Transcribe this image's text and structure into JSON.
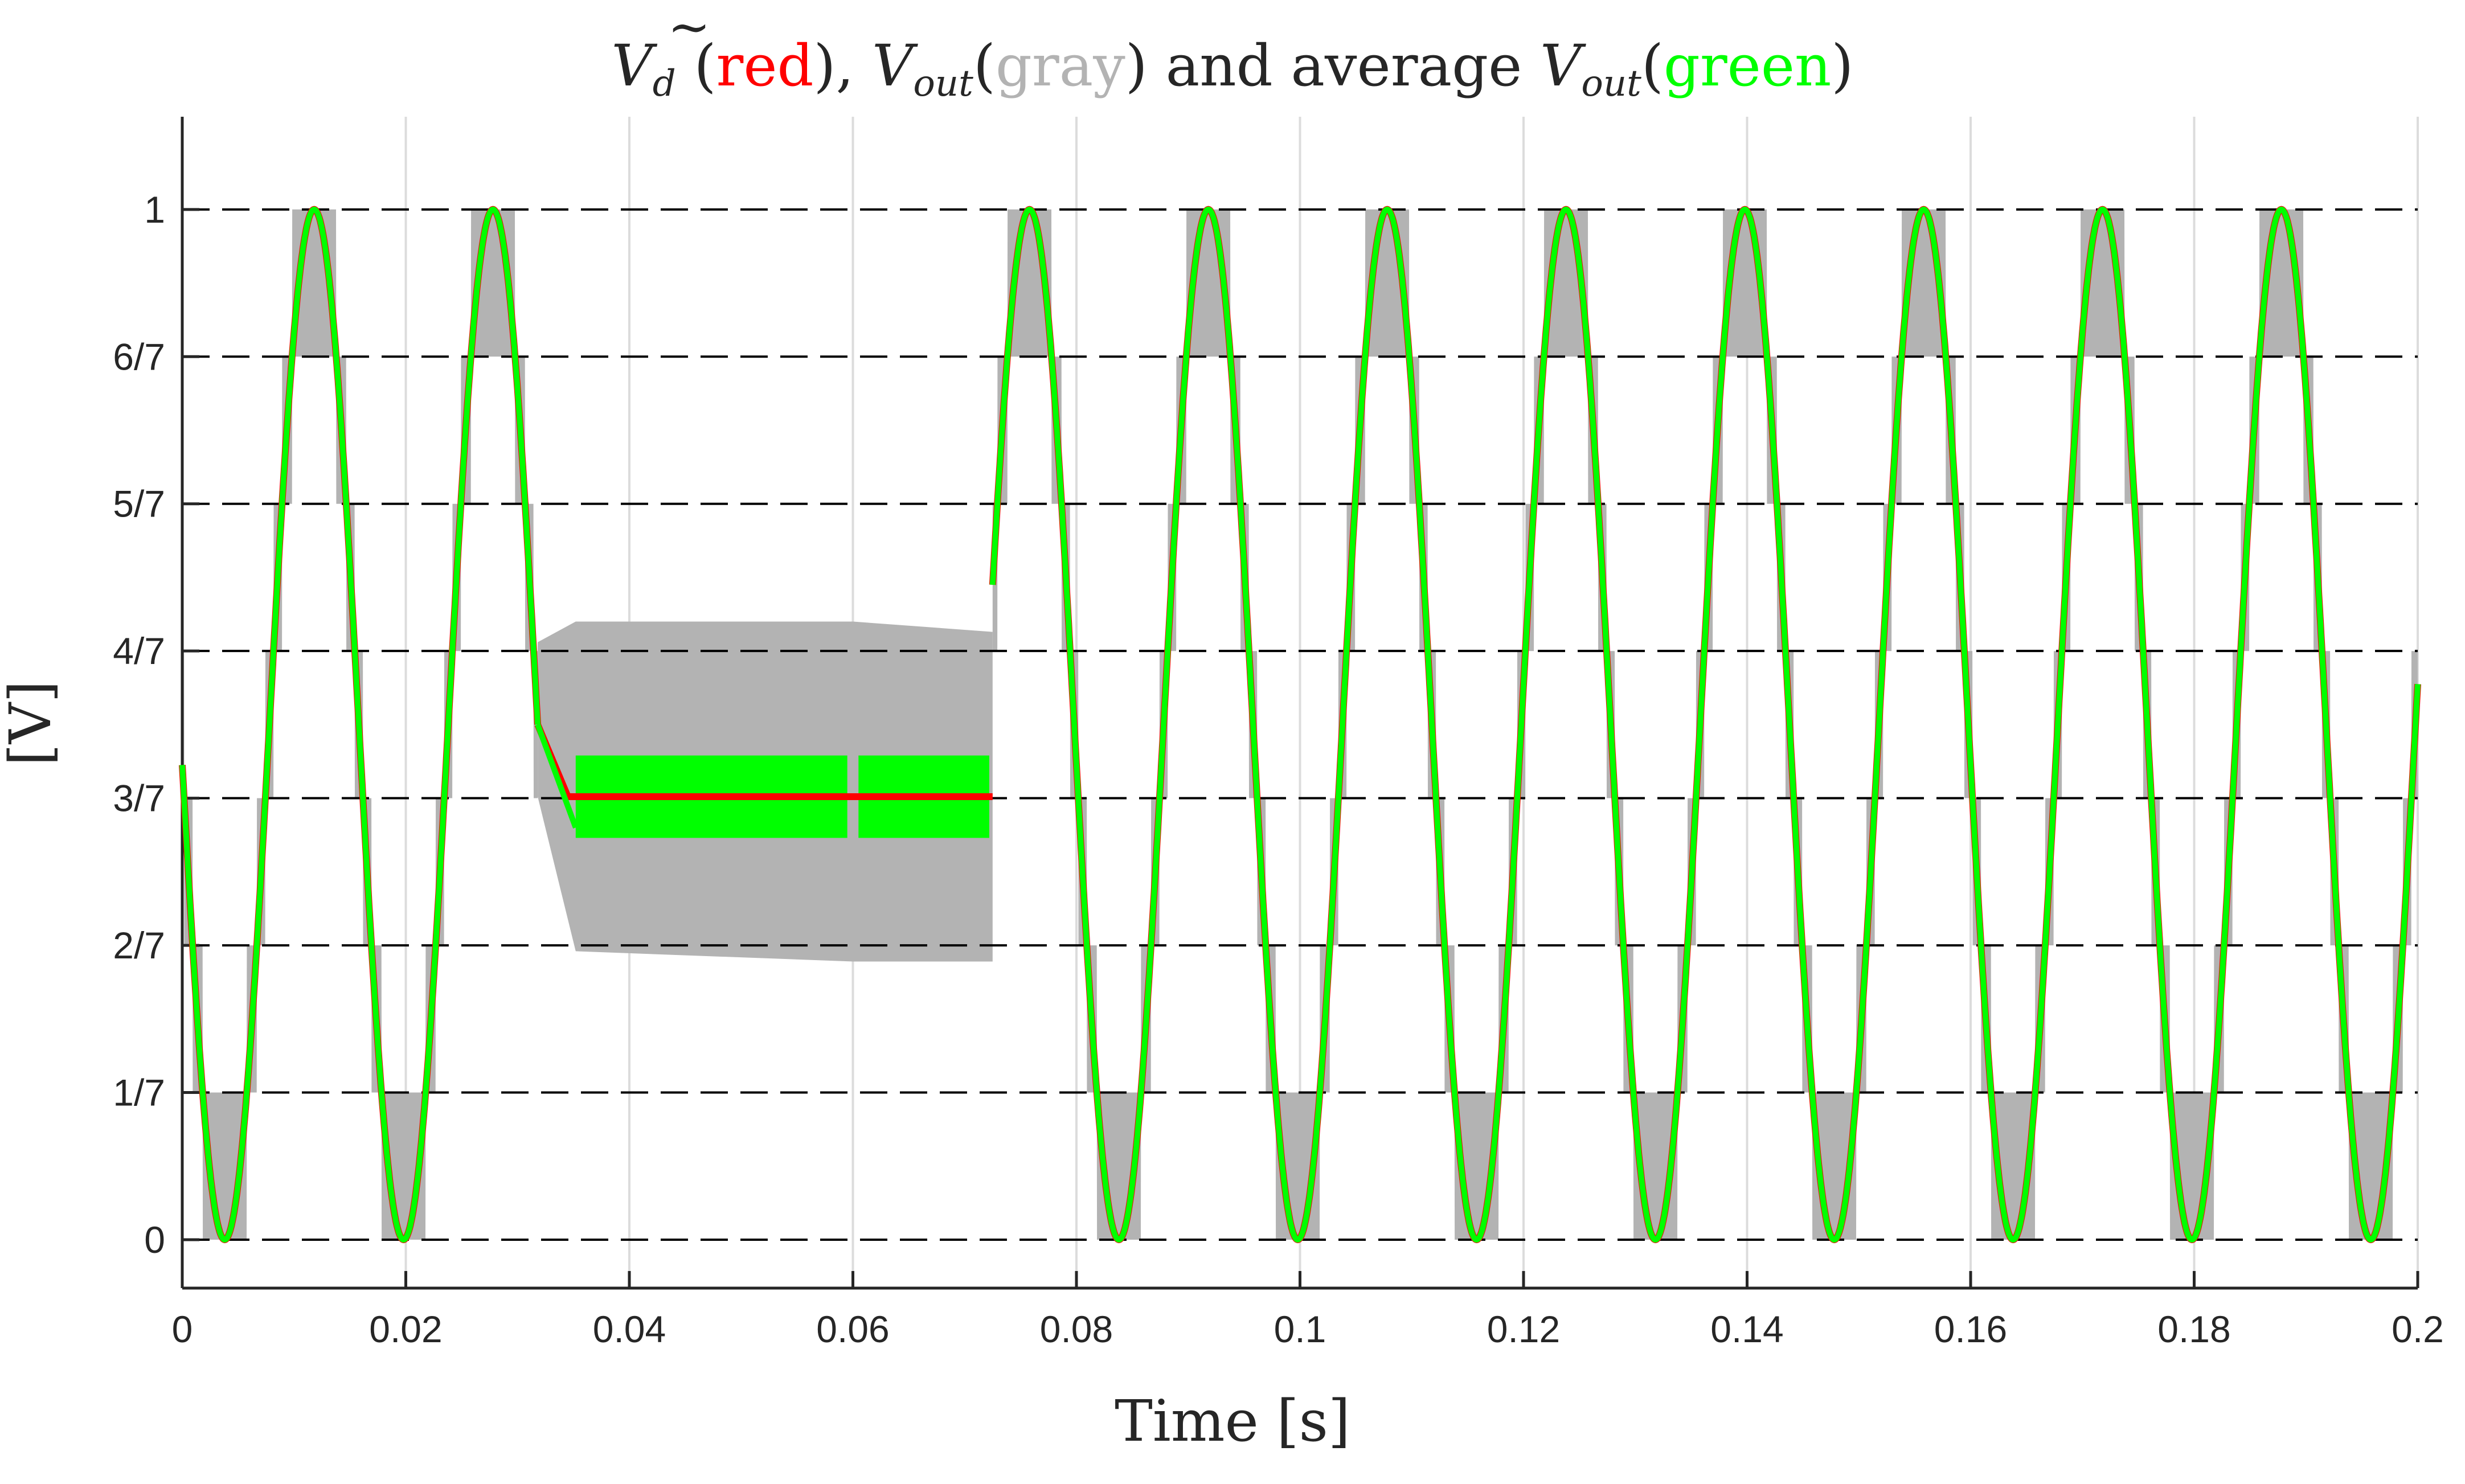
{
  "colors": {
    "red": "#ff0000",
    "gray": "#b3b3b3",
    "green": "#00ff00",
    "grid_v": "#dcdcdc",
    "grid_h": "#000000",
    "axis": "#262626"
  },
  "chart_data": {
    "type": "line",
    "title": {
      "vd_base": "V",
      "vd_tilde": "~",
      "vd_sub": "d",
      "red_word": "red",
      "vout_base": "V",
      "vout_sub": "out",
      "gray_word": "gray",
      "and_average": " and average ",
      "green_word": "green",
      "open_paren": "(",
      "close_paren": ")",
      "comma_close": "),"
    },
    "xlabel": "Time [s]",
    "ylabel": "[V]",
    "xlim": [
      0,
      0.2
    ],
    "ylim": [
      -0.047,
      1.09
    ],
    "grid": true,
    "xticks": [
      0,
      0.02,
      0.04,
      0.06,
      0.08,
      0.1,
      0.12,
      0.14,
      0.16,
      0.18,
      0.2
    ],
    "xtick_labels": [
      "0",
      "0.02",
      "0.04",
      "0.06",
      "0.08",
      "0.1",
      "0.12",
      "0.14",
      "0.16",
      "0.18",
      "0.2"
    ],
    "yticks": [
      0,
      0.142857,
      0.285714,
      0.428571,
      0.571429,
      0.714286,
      0.857143,
      1
    ],
    "ytick_labels": [
      "0",
      "1/7",
      "2/7",
      "3/7",
      "4/7",
      "5/7",
      "6/7",
      "1"
    ],
    "series": [
      {
        "name": "V~d (red)",
        "color": "#ff0000",
        "waveform": "sine",
        "offset": 0.5,
        "amplitude": 0.5,
        "frequency_hz": 62.5,
        "peak_time_s": 0.0118,
        "segments": [
          [
            0.0,
            0.0318
          ],
          [
            0.0725,
            0.2
          ]
        ],
        "fault_window": [
          0.0318,
          0.0725
        ],
        "fault_level": 0.43
      },
      {
        "name": "Vout (gray)",
        "color": "#b3b3b3",
        "waveform": "7-level staircase PWM",
        "levels": 7,
        "fault_band": {
          "t": [
            0.0318,
            0.0352,
            0.06,
            0.0725
          ],
          "upper": [
            0.58,
            0.6,
            0.6,
            0.59
          ],
          "lower": [
            0.43,
            0.28,
            0.27,
            0.27
          ]
        }
      },
      {
        "name": "average Vout (green)",
        "color": "#00ff00",
        "waveform": "sine",
        "fault_blocks": [
          {
            "t": [
              0.0352,
              0.0595
            ],
            "v": [
              0.39,
              0.47
            ]
          },
          {
            "t": [
              0.0605,
              0.0722
            ],
            "v": [
              0.39,
              0.47
            ]
          }
        ]
      }
    ]
  }
}
